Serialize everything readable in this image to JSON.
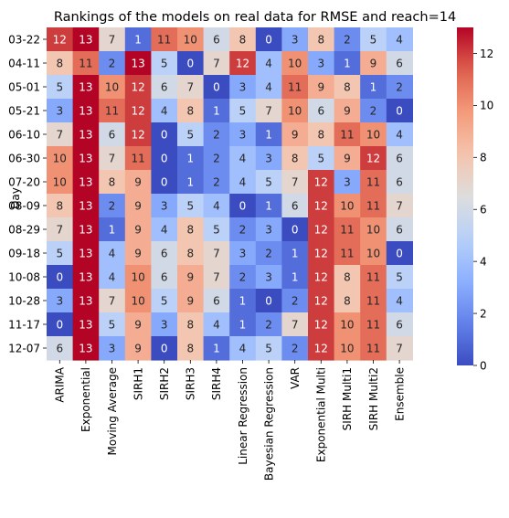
{
  "chart_data": {
    "type": "heatmap",
    "title": "Rankings of the models on real data for RMSE and reach=14",
    "xlabel": "",
    "ylabel": "Day",
    "x_categories": [
      "ARIMA",
      "Exponential",
      "Moving Average",
      "SIRH1",
      "SIRH2",
      "SIRH3",
      "SIRH4",
      "Linear Regression",
      "Bayesian Regression",
      "VAR",
      "Exponential Multi",
      "SIRH Multi1",
      "SIRH Multi2",
      "Ensemble"
    ],
    "y_categories": [
      "03-22",
      "04-11",
      "05-01",
      "05-21",
      "06-10",
      "06-30",
      "07-20",
      "08-09",
      "08-29",
      "09-18",
      "10-08",
      "10-28",
      "11-17",
      "12-07"
    ],
    "values": [
      [
        12,
        13,
        7,
        1,
        11,
        10,
        6,
        8,
        0,
        3,
        8,
        2,
        5,
        4
      ],
      [
        8,
        11,
        2,
        13,
        5,
        0,
        7,
        12,
        4,
        10,
        3,
        1,
        9,
        6
      ],
      [
        5,
        13,
        10,
        12,
        6,
        7,
        0,
        3,
        4,
        11,
        9,
        8,
        1,
        2
      ],
      [
        3,
        13,
        11,
        12,
        4,
        8,
        1,
        5,
        7,
        10,
        6,
        9,
        2,
        0
      ],
      [
        7,
        13,
        6,
        12,
        0,
        5,
        2,
        3,
        1,
        9,
        8,
        11,
        10,
        4
      ],
      [
        10,
        13,
        7,
        11,
        0,
        1,
        2,
        4,
        3,
        8,
        5,
        9,
        12,
        6
      ],
      [
        10,
        13,
        8,
        9,
        0,
        1,
        2,
        4,
        5,
        7,
        12,
        3,
        11,
        6
      ],
      [
        8,
        13,
        2,
        9,
        3,
        5,
        4,
        0,
        1,
        6,
        12,
        10,
        11,
        7
      ],
      [
        7,
        13,
        1,
        9,
        4,
        8,
        5,
        2,
        3,
        0,
        12,
        11,
        10,
        6
      ],
      [
        5,
        13,
        4,
        9,
        6,
        8,
        7,
        3,
        2,
        1,
        12,
        11,
        10,
        0
      ],
      [
        0,
        13,
        4,
        10,
        6,
        9,
        7,
        2,
        3,
        1,
        12,
        8,
        11,
        5
      ],
      [
        3,
        13,
        7,
        10,
        5,
        9,
        6,
        1,
        0,
        2,
        12,
        8,
        11,
        4
      ],
      [
        0,
        13,
        5,
        9,
        3,
        8,
        4,
        1,
        2,
        7,
        12,
        10,
        11,
        6
      ],
      [
        6,
        13,
        3,
        9,
        0,
        8,
        1,
        4,
        5,
        2,
        12,
        10,
        11,
        7
      ]
    ],
    "colormap": "coolwarm",
    "vmin": 0,
    "vmax": 13,
    "colorbar_ticks": [
      0,
      2,
      4,
      6,
      8,
      10,
      12
    ]
  }
}
